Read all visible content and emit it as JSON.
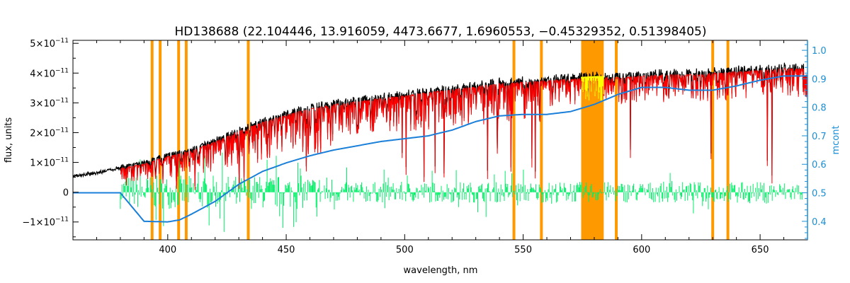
{
  "chart_data": {
    "type": "line",
    "title": "HD138688    (22.104446, 13.916059, 4473.6677, 1.6960553, −0.45329352, 0.51398405)",
    "xlabel": "wavelength, nm",
    "ylabel": "flux, units",
    "ylabel_right": "mcont",
    "xlim": [
      360,
      670
    ],
    "ylim": [
      -1.6e-11,
      5.1e-11
    ],
    "ylim_right": [
      0.335,
      1.035
    ],
    "x_ticks": [
      400,
      450,
      500,
      550,
      600,
      650
    ],
    "x_tick_labels": [
      "400",
      "450",
      "500",
      "550",
      "600",
      "650"
    ],
    "y_ticks": [
      -1e-11,
      0,
      1e-11,
      2e-11,
      3e-11,
      4e-11,
      5e-11
    ],
    "y_tick_labels": [
      {
        "mant": "−1×10",
        "exp": "−11",
        "zero": ""
      },
      {
        "mant": "",
        "exp": "",
        "zero": "0"
      },
      {
        "mant": "1×10",
        "exp": "−11",
        "zero": ""
      },
      {
        "mant": "2×10",
        "exp": "−11",
        "zero": ""
      },
      {
        "mant": "3×10",
        "exp": "−11",
        "zero": ""
      },
      {
        "mant": "4×10",
        "exp": "−11",
        "zero": ""
      },
      {
        "mant": "5×10",
        "exp": "−11",
        "zero": ""
      }
    ],
    "y_ticks_right": [
      0.4,
      0.5,
      0.6,
      0.7,
      0.8,
      0.9,
      1.0
    ],
    "y_tick_labels_right": [
      "0.4",
      "0.5",
      "0.6",
      "0.7",
      "0.8",
      "0.9",
      "1.0"
    ],
    "masked_lines_nm": [
      393.4,
      396.8,
      404.6,
      407.8,
      434.0,
      546.1,
      557.7,
      589.3,
      630.0,
      636.4
    ],
    "masked_bands_nm": [
      [
        574.5,
        584.0
      ]
    ],
    "colors": {
      "observed": "#000000",
      "model": "#ff0000",
      "residual": "#00ee66",
      "continuum": "#1a7fd9",
      "mask": "#ff9900",
      "telluric": "#ffff00",
      "right_axis": "#1a8fd6"
    },
    "series": [
      {
        "name": "",
        "role": "observed",
        "x": [
          360,
          370,
          380,
          390,
          400,
          410,
          420,
          430,
          440,
          450,
          460,
          470,
          480,
          490,
          500,
          510,
          520,
          530,
          540,
          550,
          560,
          570,
          580,
          590,
          600,
          610,
          620,
          630,
          640,
          650,
          660,
          670
        ],
        "y": [
          5.5e-12,
          6.5e-12,
          8.5e-12,
          1e-11,
          1.25e-11,
          1.45e-11,
          1.75e-11,
          2.1e-11,
          2.4e-11,
          2.65e-11,
          2.85e-11,
          3e-11,
          3.1e-11,
          3.2e-11,
          3.3e-11,
          3.4e-11,
          3.5e-11,
          3.6e-11,
          3.7e-11,
          3.75e-11,
          3.8e-11,
          3.85e-11,
          3.9e-11,
          3.9e-11,
          3.95e-11,
          4e-11,
          4e-11,
          4.05e-11,
          4.1e-11,
          4.15e-11,
          4.2e-11,
          4.2e-11
        ]
      },
      {
        "name": "",
        "role": "continuum",
        "x": [
          360,
          380,
          390,
          400,
          405,
          410,
          420,
          430,
          440,
          450,
          460,
          470,
          480,
          490,
          500,
          510,
          520,
          530,
          540,
          550,
          560,
          570,
          580,
          590,
          600,
          610,
          620,
          630,
          640,
          650,
          660,
          670
        ],
        "y_right": [
          0.5,
          0.5,
          0.4,
          0.398,
          0.405,
          0.425,
          0.47,
          0.53,
          0.575,
          0.605,
          0.63,
          0.65,
          0.665,
          0.68,
          0.69,
          0.7,
          0.72,
          0.75,
          0.77,
          0.775,
          0.775,
          0.785,
          0.81,
          0.845,
          0.87,
          0.87,
          0.86,
          0.86,
          0.875,
          0.895,
          0.91,
          0.91
        ]
      }
    ]
  }
}
